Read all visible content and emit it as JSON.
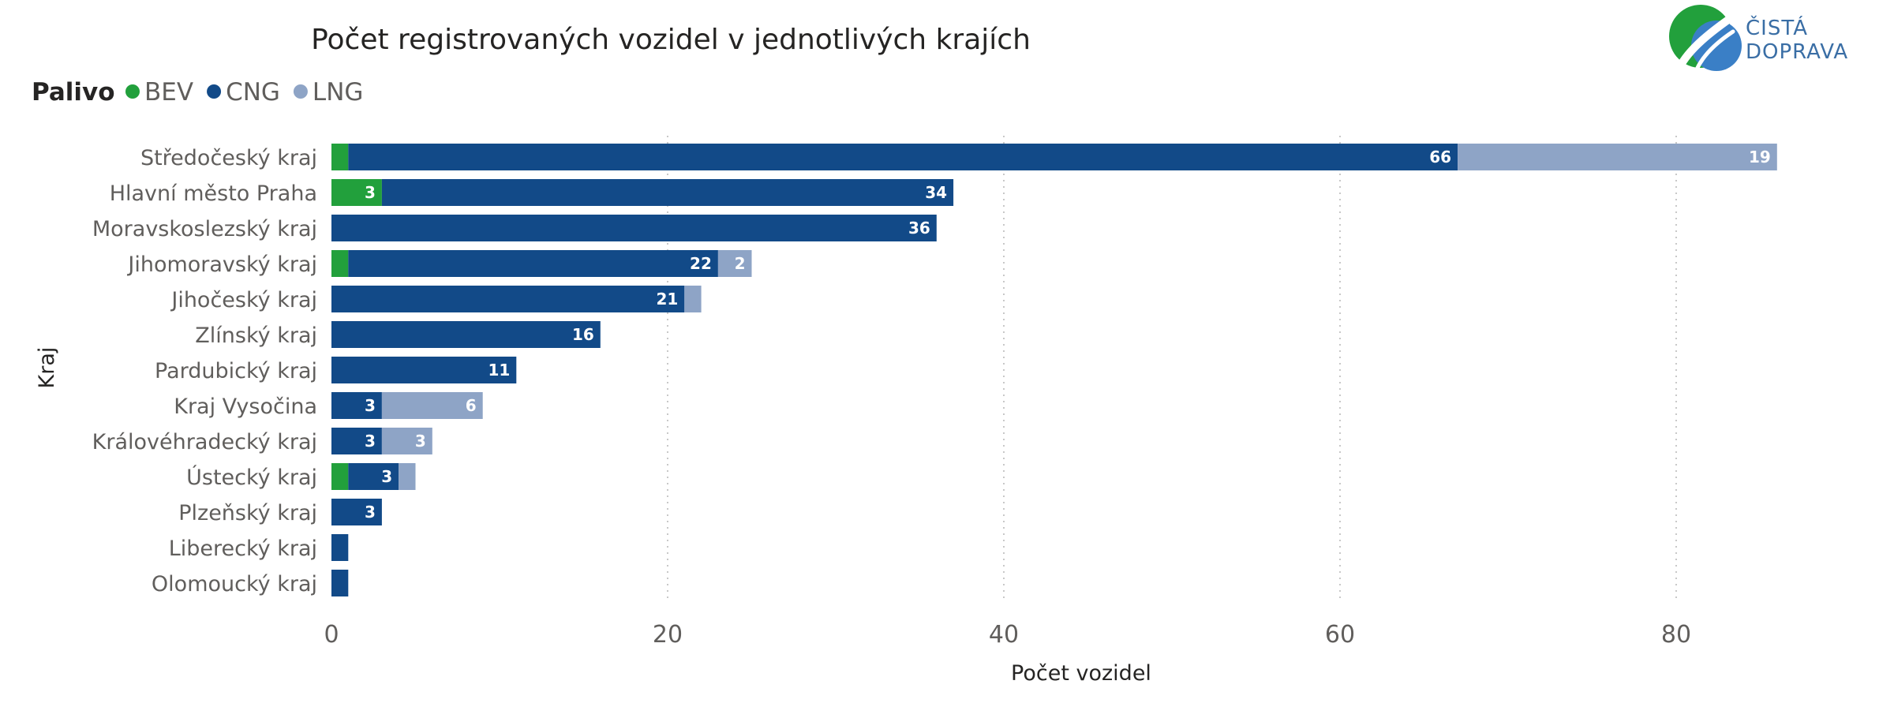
{
  "colors": {
    "BEV": "#22a03c",
    "CNG": "#124a88",
    "LNG": "#8ea4c6",
    "grid": "#c8c8c8"
  },
  "logo": {
    "line1": "ČISTÁ",
    "line2": "DOPRAVA"
  },
  "chart_data": {
    "type": "bar",
    "orientation": "horizontal",
    "stacked": true,
    "title": "Počet registrovaných vozidel v jednotlivých krajích",
    "xlabel": "Počet vozidel",
    "ylabel": "Kraj",
    "xlim": [
      0,
      88
    ],
    "xticks": [
      0,
      20,
      40,
      60,
      80
    ],
    "grid": "vertical-dotted",
    "legend": {
      "title": "Palivo",
      "position": "top-left"
    },
    "categories": [
      "Středočeský kraj",
      "Hlavní město Praha",
      "Moravskoslezský kraj",
      "Jihomoravský kraj",
      "Jihočeský kraj",
      "Zlínský kraj",
      "Pardubický kraj",
      "Kraj Vysočina",
      "Královéhradecký kraj",
      "Ústecký kraj",
      "Plzeňský kraj",
      "Liberecký kraj",
      "Olomoucký kraj"
    ],
    "series": [
      {
        "name": "BEV",
        "values": [
          1,
          3,
          0,
          1,
          0,
          0,
          0,
          0,
          0,
          1,
          0,
          0,
          0
        ]
      },
      {
        "name": "CNG",
        "values": [
          66,
          34,
          36,
          22,
          21,
          16,
          11,
          3,
          3,
          3,
          3,
          1,
          1
        ]
      },
      {
        "name": "LNG",
        "values": [
          19,
          0,
          0,
          2,
          1,
          0,
          0,
          6,
          3,
          1,
          0,
          0,
          0
        ]
      }
    ],
    "data_labels": {
      "BEV": [
        "",
        "3",
        "",
        "",
        "",
        "",
        "",
        "",
        "",
        "",
        "",
        "",
        ""
      ],
      "CNG": [
        "66",
        "34",
        "36",
        "22",
        "21",
        "16",
        "11",
        "3",
        "3",
        "3",
        "3",
        "",
        ""
      ],
      "LNG": [
        "19",
        "",
        "",
        "2",
        "",
        "",
        "",
        "6",
        "3",
        "",
        "",
        "",
        ""
      ]
    }
  }
}
